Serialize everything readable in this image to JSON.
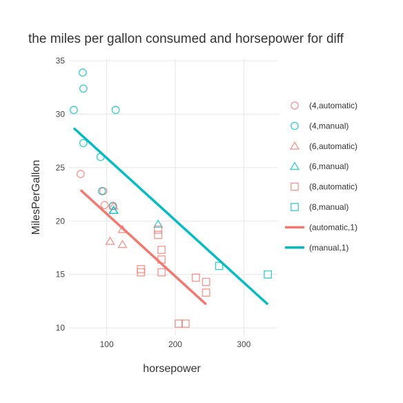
{
  "chart_data": {
    "type": "scatter",
    "title": "the miles per gallon consumed   and horsepower for diff",
    "xlabel": "horsepower",
    "ylabel": "MilesPerGallon",
    "xlim": [
      45,
      350
    ],
    "ylim": [
      9.3,
      35.2
    ],
    "x_ticks": [
      100,
      200,
      300
    ],
    "y_ticks": [
      10,
      15,
      20,
      25,
      30,
      35
    ],
    "grid": true,
    "legend_position": "right",
    "colors": {
      "automatic": "#f8766d",
      "manual": "#00bfc4"
    },
    "series": [
      {
        "name": "(4,automatic)",
        "marker": "circle",
        "color": "#f8766d",
        "points": [
          [
            62,
            24.4
          ],
          [
            95,
            22.8
          ],
          [
            97,
            21.5
          ],
          [
            109,
            21.4
          ]
        ]
      },
      {
        "name": "(4,manual)",
        "marker": "circle",
        "color": "#00bfc4",
        "points": [
          [
            52,
            30.4
          ],
          [
            66,
            32.4
          ],
          [
            65,
            33.9
          ],
          [
            66,
            27.3
          ],
          [
            91,
            26.0
          ],
          [
            113,
            30.4
          ],
          [
            93,
            22.8
          ],
          [
            109,
            21.4
          ]
        ]
      },
      {
        "name": "(6,automatic)",
        "marker": "triangle",
        "color": "#f8766d",
        "points": [
          [
            105,
            18.1
          ],
          [
            123,
            17.8
          ],
          [
            123,
            19.2
          ],
          [
            110,
            21.4
          ]
        ]
      },
      {
        "name": "(6,manual)",
        "marker": "triangle",
        "color": "#00bfc4",
        "points": [
          [
            110,
            21.0
          ],
          [
            110,
            21.0
          ],
          [
            175,
            19.7
          ]
        ]
      },
      {
        "name": "(8,automatic)",
        "marker": "square",
        "color": "#f8766d",
        "points": [
          [
            175,
            18.7
          ],
          [
            245,
            14.3
          ],
          [
            180,
            16.4
          ],
          [
            180,
            17.3
          ],
          [
            180,
            15.2
          ],
          [
            205,
            10.4
          ],
          [
            215,
            10.4
          ],
          [
            230,
            14.7
          ],
          [
            150,
            15.5
          ],
          [
            150,
            15.2
          ],
          [
            245,
            13.3
          ],
          [
            175,
            19.2
          ]
        ]
      },
      {
        "name": "(8,manual)",
        "marker": "square",
        "color": "#00bfc4",
        "points": [
          [
            264,
            15.8
          ],
          [
            335,
            15.0
          ]
        ]
      },
      {
        "name": "(automatic,1)",
        "marker": "line",
        "color": "#f8766d",
        "points": [
          [
            62,
            22.9
          ],
          [
            245,
            12.2
          ]
        ]
      },
      {
        "name": "(manual,1)",
        "marker": "line",
        "color": "#00bfc4",
        "points": [
          [
            52,
            28.7
          ],
          [
            335,
            12.2
          ]
        ]
      }
    ]
  }
}
